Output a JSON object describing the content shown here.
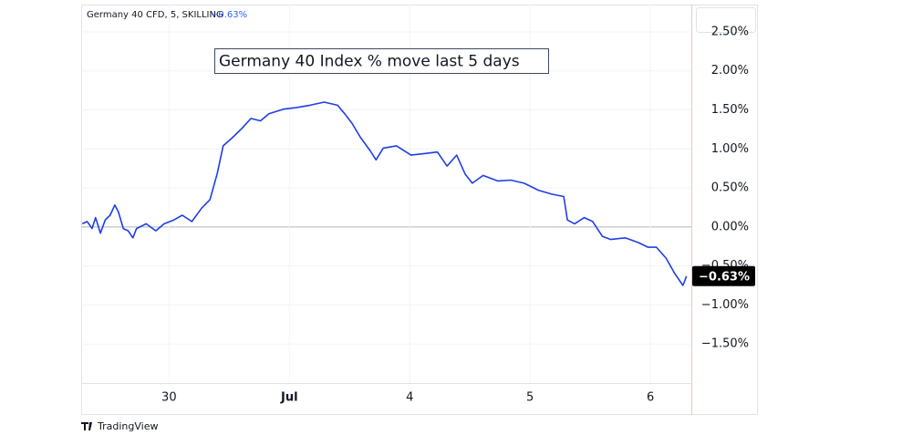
{
  "chart_data": {
    "type": "line",
    "title": "Germany 40 Index % move last 5 days",
    "symbol_label": "Germany 40 CFD, 5, SKILLING",
    "last_label": "−0.63%",
    "brand": "TradingView",
    "xlim": [
      -0.73,
      4.34
    ],
    "ylim": [
      -2.0,
      2.85
    ],
    "xticks": [
      {
        "value": 0,
        "label": "30"
      },
      {
        "value": 1,
        "label": "Jul"
      },
      {
        "value": 2,
        "label": "4"
      },
      {
        "value": 3,
        "label": "5"
      },
      {
        "value": 4,
        "label": "6"
      }
    ],
    "yticks": [
      {
        "value": -1.5,
        "label": "−1.50%"
      },
      {
        "value": -1.0,
        "label": "−1.00%"
      },
      {
        "value": -0.5,
        "label": "−0.50%"
      },
      {
        "value": 0,
        "label": "0.00%"
      },
      {
        "value": 0.5,
        "label": "0.50%"
      },
      {
        "value": 1.0,
        "label": "1.00%"
      },
      {
        "value": 1.5,
        "label": "1.50%"
      },
      {
        "value": 2.0,
        "label": "2.00%"
      },
      {
        "value": 2.5,
        "label": "2.50%"
      }
    ],
    "grid": true,
    "series": [
      {
        "color": "#1e3ee6",
        "x": [
          -0.72,
          -0.68,
          -0.64,
          -0.61,
          -0.57,
          -0.53,
          -0.49,
          -0.45,
          -0.42,
          -0.38,
          -0.34,
          -0.3,
          -0.27,
          -0.19,
          -0.11,
          -0.04,
          0.04,
          0.11,
          0.19,
          0.27,
          0.34,
          0.4,
          0.45,
          0.53,
          0.61,
          0.68,
          0.76,
          0.83,
          0.95,
          1.06,
          1.17,
          1.29,
          1.4,
          1.46,
          1.52,
          1.59,
          1.67,
          1.72,
          1.78,
          1.89,
          2.01,
          2.12,
          2.23,
          2.31,
          2.39,
          2.46,
          2.52,
          2.61,
          2.73,
          2.84,
          2.95,
          3.07,
          3.18,
          3.28,
          3.31,
          3.37,
          3.45,
          3.52,
          3.6,
          3.67,
          3.79,
          3.9,
          3.98,
          4.05,
          4.13,
          4.2,
          4.27,
          4.3
        ],
        "values": [
          0.04,
          0.07,
          -0.02,
          0.12,
          -0.08,
          0.09,
          0.15,
          0.28,
          0.19,
          -0.02,
          -0.05,
          -0.14,
          -0.02,
          0.04,
          -0.05,
          0.04,
          0.09,
          0.15,
          0.07,
          0.24,
          0.35,
          0.68,
          1.04,
          1.15,
          1.27,
          1.39,
          1.36,
          1.45,
          1.51,
          1.53,
          1.56,
          1.6,
          1.56,
          1.45,
          1.33,
          1.15,
          0.98,
          0.86,
          1.01,
          1.04,
          0.92,
          0.94,
          0.96,
          0.78,
          0.92,
          0.68,
          0.56,
          0.66,
          0.59,
          0.6,
          0.56,
          0.47,
          0.42,
          0.39,
          0.09,
          0.04,
          0.12,
          0.07,
          -0.12,
          -0.16,
          -0.14,
          -0.2,
          -0.26,
          -0.26,
          -0.4,
          -0.59,
          -0.75,
          -0.63
        ]
      }
    ]
  }
}
